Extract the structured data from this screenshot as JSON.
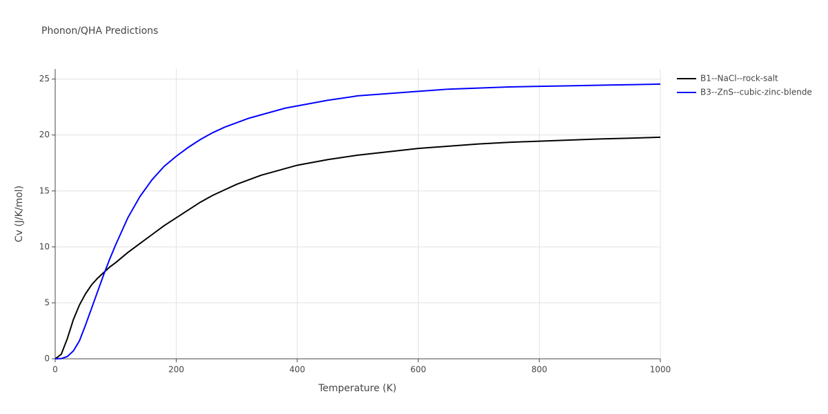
{
  "chart_data": {
    "type": "line",
    "title": "Phonon/QHA Predictions",
    "x_label": "Temperature (K)",
    "y_label": "Cv (J/K/mol)",
    "x": [
      0,
      10,
      20,
      30,
      40,
      50,
      60,
      70,
      80,
      90,
      100,
      120,
      140,
      160,
      180,
      200,
      220,
      240,
      260,
      280,
      300,
      320,
      340,
      360,
      380,
      400,
      450,
      500,
      550,
      600,
      650,
      700,
      750,
      800,
      850,
      900,
      950,
      1000
    ],
    "series": [
      {
        "name": "B1--NaCl--rock-salt",
        "color": "#000000",
        "values": [
          0,
          0.4,
          1.8,
          3.5,
          4.8,
          5.8,
          6.6,
          7.2,
          7.7,
          8.2,
          8.6,
          9.5,
          10.3,
          11.1,
          11.9,
          12.6,
          13.3,
          14.0,
          14.6,
          15.1,
          15.6,
          16.0,
          16.4,
          16.7,
          17.0,
          17.3,
          17.8,
          18.2,
          18.5,
          18.8,
          19.0,
          19.2,
          19.35,
          19.45,
          19.55,
          19.65,
          19.72,
          19.8
        ]
      },
      {
        "name": "B3--ZnS--cubic-zinc-blende",
        "color": "#0000ff",
        "values": [
          0,
          0.02,
          0.2,
          0.7,
          1.6,
          3.0,
          4.5,
          6.0,
          7.5,
          8.9,
          10.2,
          12.6,
          14.5,
          16.0,
          17.2,
          18.1,
          18.9,
          19.6,
          20.2,
          20.7,
          21.1,
          21.5,
          21.8,
          22.1,
          22.4,
          22.6,
          23.1,
          23.5,
          23.7,
          23.9,
          24.1,
          24.2,
          24.3,
          24.35,
          24.4,
          24.45,
          24.5,
          24.55
        ]
      }
    ],
    "xlim": [
      0,
      1000
    ],
    "xticks": [
      0,
      200,
      400,
      600,
      800,
      1000
    ],
    "ylim": [
      0,
      25.9
    ],
    "yticks": [
      0,
      5,
      10,
      15,
      20,
      25
    ],
    "grid": true
  }
}
